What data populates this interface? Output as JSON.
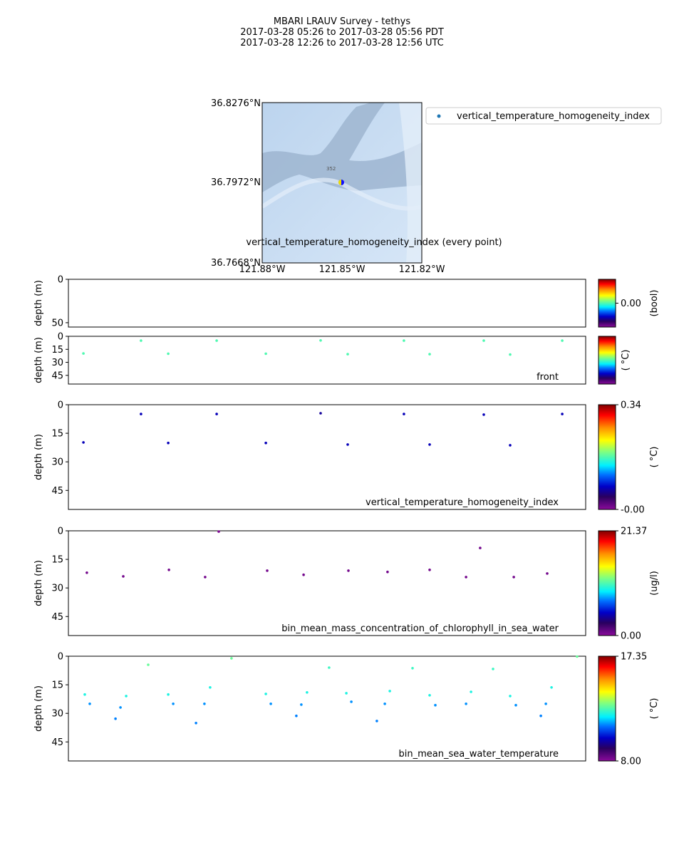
{
  "title_lines": [
    "MBARI LRAUV Survey - tethys",
    "2017-03-28 05:26  to  2017-03-28 05:56 PDT",
    "2017-03-28 12:26  to  2017-03-28 12:56 UTC"
  ],
  "map": {
    "lat_ticks": [
      "36.8276°N",
      "36.7972°N",
      "36.7668°N"
    ],
    "lon_ticks": [
      "121.88°W",
      "121.85°W",
      "121.82°W"
    ],
    "depth_contour_label": "352",
    "subtitle": "vertical_temperature_homogeneity_index (every point)",
    "legend_label": "vertical_temperature_homogeneity_index",
    "legend_marker_color": "#1f77b4"
  },
  "chart_data": [
    {
      "type": "scatter",
      "ylabel": "depth (m)",
      "yticks": [
        "0",
        "50"
      ],
      "ylim": [
        0,
        55
      ],
      "xlim_minutes": [
        0,
        30
      ],
      "label": "",
      "colorbar": {
        "label": "(bool)",
        "ticks": [
          "0.00"
        ],
        "range": [
          -0.5,
          0.5
        ]
      },
      "points": []
    },
    {
      "type": "scatter",
      "ylabel": "depth (m)",
      "yticks": [
        "0",
        "15",
        "30",
        "45"
      ],
      "ylim": [
        0,
        55
      ],
      "xlim_minutes": [
        0,
        30
      ],
      "label": "front",
      "colorbar": {
        "label": "( °C)",
        "ticks": [],
        "range": [
          -1,
          1
        ]
      },
      "points": [
        {
          "t": 0.87,
          "depth": 19.8,
          "v": 0
        },
        {
          "t": 4.21,
          "depth": 5,
          "v": 0
        },
        {
          "t": 5.79,
          "depth": 20,
          "v": 0
        },
        {
          "t": 8.6,
          "depth": 5,
          "v": 0
        },
        {
          "t": 11.45,
          "depth": 20,
          "v": 0
        },
        {
          "t": 14.63,
          "depth": 4.8,
          "v": 0
        },
        {
          "t": 16.2,
          "depth": 20.6,
          "v": 0
        },
        {
          "t": 19.46,
          "depth": 5,
          "v": 0
        },
        {
          "t": 20.95,
          "depth": 20.6,
          "v": 0
        },
        {
          "t": 24.09,
          "depth": 5,
          "v": 0
        },
        {
          "t": 25.62,
          "depth": 21,
          "v": 0
        },
        {
          "t": 28.64,
          "depth": 5,
          "v": 0
        }
      ]
    },
    {
      "type": "scatter",
      "ylabel": "depth (m)",
      "yticks": [
        "0",
        "15",
        "30",
        "45"
      ],
      "ylim": [
        0,
        55
      ],
      "xlim_minutes": [
        0,
        30
      ],
      "label": "vertical_temperature_homogeneity_index",
      "colorbar": {
        "label": "( °C)",
        "ticks": [
          "0.34",
          "-0.00"
        ],
        "range": [
          0,
          0.34
        ]
      },
      "points": [
        {
          "t": 0.87,
          "depth": 19.8,
          "v": 0.07
        },
        {
          "t": 4.21,
          "depth": 4.9,
          "v": 0.07
        },
        {
          "t": 5.79,
          "depth": 20.1,
          "v": 0.07
        },
        {
          "t": 8.6,
          "depth": 4.9,
          "v": 0.07
        },
        {
          "t": 11.45,
          "depth": 20.1,
          "v": 0.07
        },
        {
          "t": 14.63,
          "depth": 4.5,
          "v": 0.06
        },
        {
          "t": 16.2,
          "depth": 20.9,
          "v": 0.07
        },
        {
          "t": 19.46,
          "depth": 4.9,
          "v": 0.07
        },
        {
          "t": 20.95,
          "depth": 20.9,
          "v": 0.07
        },
        {
          "t": 24.09,
          "depth": 5.2,
          "v": 0.07
        },
        {
          "t": 25.62,
          "depth": 21.3,
          "v": 0.07
        },
        {
          "t": 28.64,
          "depth": 4.9,
          "v": 0.07
        }
      ]
    },
    {
      "type": "scatter",
      "ylabel": "depth (m)",
      "yticks": [
        "0",
        "15",
        "30",
        "45"
      ],
      "ylim": [
        0,
        55
      ],
      "xlim_minutes": [
        0,
        30
      ],
      "label": "bin_mean_mass_concentration_of_chlorophyll_in_sea_water",
      "colorbar": {
        "label": "(ug/l)",
        "ticks": [
          "21.37",
          "0.00"
        ],
        "range": [
          0,
          21.37
        ]
      },
      "points": [
        {
          "t": 1.07,
          "depth": 22,
          "v": 0.6
        },
        {
          "t": 3.18,
          "depth": 23.9,
          "v": 0.6
        },
        {
          "t": 5.83,
          "depth": 20.5,
          "v": 0.6
        },
        {
          "t": 7.93,
          "depth": 24.3,
          "v": 0.6
        },
        {
          "t": 8.72,
          "depth": 0.4,
          "v": 0.3
        },
        {
          "t": 11.53,
          "depth": 20.9,
          "v": 0.6
        },
        {
          "t": 13.64,
          "depth": 23.1,
          "v": 0.6
        },
        {
          "t": 16.24,
          "depth": 20.9,
          "v": 0.6
        },
        {
          "t": 18.51,
          "depth": 21.6,
          "v": 0.6
        },
        {
          "t": 20.95,
          "depth": 20.5,
          "v": 0.6
        },
        {
          "t": 23.06,
          "depth": 24.3,
          "v": 0.6
        },
        {
          "t": 23.88,
          "depth": 9,
          "v": 0.6
        },
        {
          "t": 25.83,
          "depth": 24.3,
          "v": 0.6
        },
        {
          "t": 27.77,
          "depth": 22.4,
          "v": 0.6
        }
      ]
    },
    {
      "type": "scatter",
      "ylabel": "depth (m)",
      "yticks": [
        "0",
        "15",
        "30",
        "45"
      ],
      "ylim": [
        0,
        55
      ],
      "xlim_minutes": [
        0,
        30
      ],
      "label": "bin_mean_sea_water_temperature",
      "colorbar": {
        "label": "( °C)",
        "ticks": [
          "17.35",
          "8.00"
        ],
        "range": [
          8.0,
          17.35
        ]
      },
      "points": [
        {
          "t": 0.95,
          "depth": 20.1,
          "v": 12.2
        },
        {
          "t": 1.24,
          "depth": 25,
          "v": 11.3
        },
        {
          "t": 2.73,
          "depth": 32.8,
          "v": 11.2
        },
        {
          "t": 3.02,
          "depth": 26.9,
          "v": 11.3
        },
        {
          "t": 3.35,
          "depth": 20.9,
          "v": 12.2
        },
        {
          "t": 4.63,
          "depth": 4.5,
          "v": 12.9
        },
        {
          "t": 5.79,
          "depth": 20.1,
          "v": 12.2
        },
        {
          "t": 6.08,
          "depth": 25,
          "v": 11.3
        },
        {
          "t": 7.4,
          "depth": 35.1,
          "v": 11.2
        },
        {
          "t": 7.89,
          "depth": 25,
          "v": 11.3
        },
        {
          "t": 8.22,
          "depth": 16.4,
          "v": 12.2
        },
        {
          "t": 9.46,
          "depth": 1.1,
          "v": 12.9
        },
        {
          "t": 11.45,
          "depth": 19.8,
          "v": 12.2
        },
        {
          "t": 11.74,
          "depth": 25,
          "v": 11.3
        },
        {
          "t": 13.22,
          "depth": 31.3,
          "v": 11.2
        },
        {
          "t": 13.51,
          "depth": 25.4,
          "v": 11.3
        },
        {
          "t": 13.84,
          "depth": 19,
          "v": 12.2
        },
        {
          "t": 15.12,
          "depth": 6,
          "v": 12.5
        },
        {
          "t": 16.12,
          "depth": 19.4,
          "v": 12.2
        },
        {
          "t": 16.41,
          "depth": 23.9,
          "v": 11.3
        },
        {
          "t": 17.89,
          "depth": 34,
          "v": 11.2
        },
        {
          "t": 18.35,
          "depth": 25,
          "v": 11.3
        },
        {
          "t": 18.64,
          "depth": 18.3,
          "v": 12.2
        },
        {
          "t": 19.96,
          "depth": 6.3,
          "v": 12.5
        },
        {
          "t": 20.95,
          "depth": 20.5,
          "v": 12.2
        },
        {
          "t": 21.28,
          "depth": 25.7,
          "v": 11.3
        },
        {
          "t": 23.06,
          "depth": 25,
          "v": 11.3
        },
        {
          "t": 23.35,
          "depth": 18.7,
          "v": 12.2
        },
        {
          "t": 24.63,
          "depth": 6.7,
          "v": 12.5
        },
        {
          "t": 25.62,
          "depth": 20.9,
          "v": 12.2
        },
        {
          "t": 25.95,
          "depth": 25.7,
          "v": 11.3
        },
        {
          "t": 27.4,
          "depth": 31.3,
          "v": 11.2
        },
        {
          "t": 27.69,
          "depth": 25,
          "v": 11.3
        },
        {
          "t": 28.02,
          "depth": 16.4,
          "v": 12.2
        },
        {
          "t": 29.5,
          "depth": 0.2,
          "v": 12.9
        }
      ]
    }
  ]
}
